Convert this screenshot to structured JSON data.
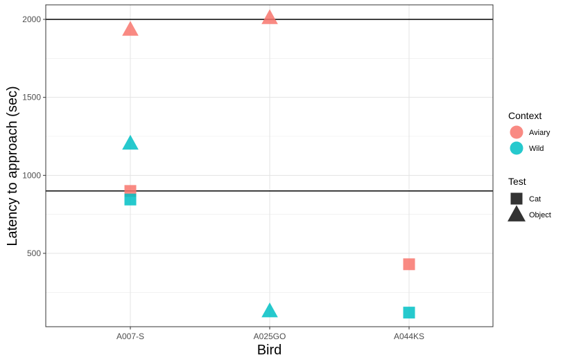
{
  "chart_data": {
    "type": "scatter",
    "xlabel": "Bird",
    "ylabel": "Latency to approach (sec)",
    "categories": [
      "A007-S",
      "A025GO",
      "A044KS"
    ],
    "ylim": [
      0,
      2100
    ],
    "yticks": [
      500,
      1000,
      1500,
      2000
    ],
    "ytick_labels": [
      "500",
      "1000",
      "1500",
      "2000"
    ],
    "hlines": [
      900,
      2000
    ],
    "grid": true,
    "legend_placement": "right",
    "legends": [
      {
        "title": "Context",
        "entries": [
          {
            "label": "Aviary",
            "color": "#F8766D",
            "shape": "circle"
          },
          {
            "label": "Wild",
            "color": "#00BFC4",
            "shape": "circle"
          }
        ]
      },
      {
        "title": "Test",
        "entries": [
          {
            "label": "Cat",
            "color": "#333333",
            "shape": "square"
          },
          {
            "label": "Object",
            "color": "#333333",
            "shape": "triangle"
          }
        ]
      }
    ],
    "points": [
      {
        "bird": "A007-S",
        "context": "Aviary",
        "test": "Object",
        "y": 1935
      },
      {
        "bird": "A007-S",
        "context": "Wild",
        "test": "Object",
        "y": 1205
      },
      {
        "bird": "A007-S",
        "context": "Aviary",
        "test": "Cat",
        "y": 900
      },
      {
        "bird": "A007-S",
        "context": "Wild",
        "test": "Cat",
        "y": 845
      },
      {
        "bird": "A025GO",
        "context": "Aviary",
        "test": "Object",
        "y": 2010
      },
      {
        "bird": "A025GO",
        "context": "Wild",
        "test": "Object",
        "y": 130
      },
      {
        "bird": "A044KS",
        "context": "Aviary",
        "test": "Cat",
        "y": 430
      },
      {
        "bird": "A044KS",
        "context": "Wild",
        "test": "Cat",
        "y": 120
      }
    ]
  }
}
